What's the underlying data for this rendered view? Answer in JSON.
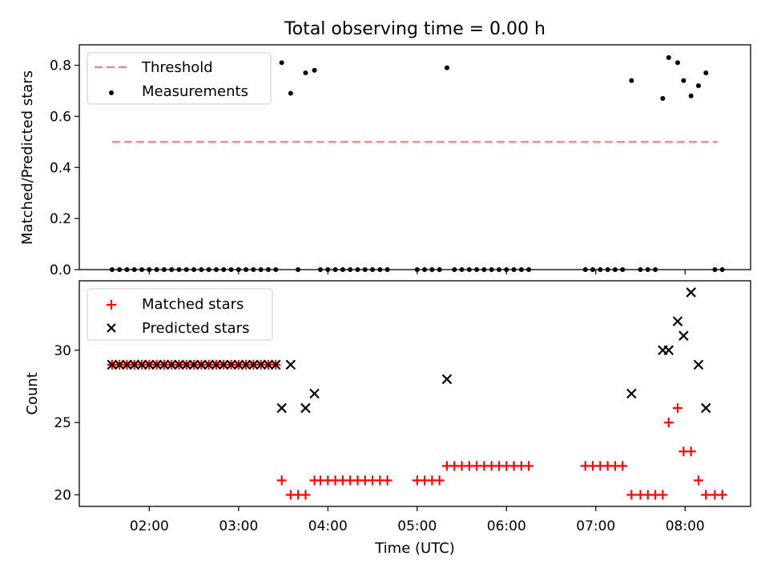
{
  "figure_title": "Total observing time = 0.00 h",
  "xlabel": "Time (UTC)",
  "xticks": [
    "02:00",
    "03:00",
    "04:00",
    "05:00",
    "06:00",
    "07:00",
    "08:00"
  ],
  "chart_data": [
    {
      "type": "scatter",
      "ylabel": "Matched/Predicted stars",
      "xlim": [
        "01:13",
        "08:44"
      ],
      "ylim": [
        0,
        0.88
      ],
      "yticks": [
        "0.0",
        "0.2",
        "0.4",
        "0.6",
        "0.8"
      ],
      "legend_position": "upper-left",
      "threshold": {
        "name": "Threshold",
        "value": 0.5,
        "x_start": "01:35",
        "x_end": "08:22",
        "color": "#ff7b7b",
        "style": "dashed"
      },
      "series": [
        {
          "name": "Measurements",
          "marker": "dot",
          "color": "#000000",
          "points": [
            [
              "01:35",
              0
            ],
            [
              "01:40",
              0
            ],
            [
              "01:45",
              0
            ],
            [
              "01:50",
              0
            ],
            [
              "01:55",
              0
            ],
            [
              "02:00",
              0
            ],
            [
              "02:05",
              0
            ],
            [
              "02:10",
              0
            ],
            [
              "02:15",
              0
            ],
            [
              "02:20",
              0
            ],
            [
              "02:25",
              0
            ],
            [
              "02:30",
              0
            ],
            [
              "02:35",
              0
            ],
            [
              "02:40",
              0
            ],
            [
              "02:45",
              0
            ],
            [
              "02:50",
              0
            ],
            [
              "02:55",
              0
            ],
            [
              "03:00",
              0
            ],
            [
              "03:05",
              0
            ],
            [
              "03:10",
              0
            ],
            [
              "03:15",
              0
            ],
            [
              "03:20",
              0
            ],
            [
              "03:25",
              0
            ],
            [
              "03:29",
              0.81
            ],
            [
              "03:35",
              0.69
            ],
            [
              "03:40",
              0
            ],
            [
              "03:45",
              0.77
            ],
            [
              "03:51",
              0.78
            ],
            [
              "03:55",
              0
            ],
            [
              "04:00",
              0
            ],
            [
              "04:05",
              0
            ],
            [
              "04:10",
              0
            ],
            [
              "04:15",
              0
            ],
            [
              "04:20",
              0
            ],
            [
              "04:25",
              0
            ],
            [
              "04:30",
              0
            ],
            [
              "04:35",
              0
            ],
            [
              "04:40",
              0
            ],
            [
              "05:00",
              0
            ],
            [
              "05:05",
              0
            ],
            [
              "05:10",
              0
            ],
            [
              "05:15",
              0
            ],
            [
              "05:20",
              0.79
            ],
            [
              "05:25",
              0
            ],
            [
              "05:30",
              0
            ],
            [
              "05:35",
              0
            ],
            [
              "05:40",
              0
            ],
            [
              "05:45",
              0
            ],
            [
              "05:50",
              0
            ],
            [
              "05:55",
              0
            ],
            [
              "06:00",
              0
            ],
            [
              "06:05",
              0
            ],
            [
              "06:10",
              0
            ],
            [
              "06:15",
              0
            ],
            [
              "06:53",
              0
            ],
            [
              "06:58",
              0
            ],
            [
              "07:03",
              0
            ],
            [
              "07:08",
              0
            ],
            [
              "07:13",
              0
            ],
            [
              "07:18",
              0
            ],
            [
              "07:24",
              0.74
            ],
            [
              "07:30",
              0
            ],
            [
              "07:35",
              0
            ],
            [
              "07:40",
              0
            ],
            [
              "07:45",
              0.67
            ],
            [
              "07:49",
              0.83
            ],
            [
              "07:55",
              0.81
            ],
            [
              "07:59",
              0.74
            ],
            [
              "08:04",
              0.68
            ],
            [
              "08:09",
              0.72
            ],
            [
              "08:14",
              0.77
            ],
            [
              "08:20",
              0
            ],
            [
              "08:25",
              0
            ]
          ]
        }
      ]
    },
    {
      "type": "scatter",
      "ylabel": "Count",
      "xlabel": "Time (UTC)",
      "xlim": [
        "01:13",
        "08:44"
      ],
      "ylim": [
        19.2,
        34.8
      ],
      "yticks": [
        "20",
        "25",
        "30"
      ],
      "legend_position": "upper-left",
      "series": [
        {
          "name": "Matched stars",
          "marker": "plus",
          "color": "#ff0000",
          "points": [
            [
              "01:35",
              29
            ],
            [
              "01:40",
              29
            ],
            [
              "01:45",
              29
            ],
            [
              "01:50",
              29
            ],
            [
              "01:55",
              29
            ],
            [
              "02:00",
              29
            ],
            [
              "02:05",
              29
            ],
            [
              "02:10",
              29
            ],
            [
              "02:15",
              29
            ],
            [
              "02:20",
              29
            ],
            [
              "02:25",
              29
            ],
            [
              "02:30",
              29
            ],
            [
              "02:35",
              29
            ],
            [
              "02:40",
              29
            ],
            [
              "02:45",
              29
            ],
            [
              "02:50",
              29
            ],
            [
              "02:55",
              29
            ],
            [
              "03:00",
              29
            ],
            [
              "03:05",
              29
            ],
            [
              "03:10",
              29
            ],
            [
              "03:15",
              29
            ],
            [
              "03:20",
              29
            ],
            [
              "03:25",
              29
            ],
            [
              "03:29",
              21
            ],
            [
              "03:35",
              20
            ],
            [
              "03:40",
              20
            ],
            [
              "03:45",
              20
            ],
            [
              "03:51",
              21
            ],
            [
              "03:55",
              21
            ],
            [
              "04:00",
              21
            ],
            [
              "04:05",
              21
            ],
            [
              "04:10",
              21
            ],
            [
              "04:15",
              21
            ],
            [
              "04:20",
              21
            ],
            [
              "04:25",
              21
            ],
            [
              "04:30",
              21
            ],
            [
              "04:35",
              21
            ],
            [
              "04:40",
              21
            ],
            [
              "05:00",
              21
            ],
            [
              "05:05",
              21
            ],
            [
              "05:10",
              21
            ],
            [
              "05:15",
              21
            ],
            [
              "05:20",
              22
            ],
            [
              "05:25",
              22
            ],
            [
              "05:30",
              22
            ],
            [
              "05:35",
              22
            ],
            [
              "05:40",
              22
            ],
            [
              "05:45",
              22
            ],
            [
              "05:50",
              22
            ],
            [
              "05:55",
              22
            ],
            [
              "06:00",
              22
            ],
            [
              "06:05",
              22
            ],
            [
              "06:10",
              22
            ],
            [
              "06:15",
              22
            ],
            [
              "06:53",
              22
            ],
            [
              "06:58",
              22
            ],
            [
              "07:03",
              22
            ],
            [
              "07:08",
              22
            ],
            [
              "07:13",
              22
            ],
            [
              "07:18",
              22
            ],
            [
              "07:24",
              20
            ],
            [
              "07:30",
              20
            ],
            [
              "07:35",
              20
            ],
            [
              "07:40",
              20
            ],
            [
              "07:45",
              20
            ],
            [
              "07:49",
              25
            ],
            [
              "07:55",
              26
            ],
            [
              "07:59",
              23
            ],
            [
              "08:04",
              23
            ],
            [
              "08:09",
              21
            ],
            [
              "08:14",
              20
            ],
            [
              "08:20",
              20
            ],
            [
              "08:25",
              20
            ]
          ]
        },
        {
          "name": "Predicted stars",
          "marker": "x",
          "color": "#000000",
          "points": [
            [
              "01:35",
              29
            ],
            [
              "01:40",
              29
            ],
            [
              "01:45",
              29
            ],
            [
              "01:50",
              29
            ],
            [
              "01:55",
              29
            ],
            [
              "02:00",
              29
            ],
            [
              "02:05",
              29
            ],
            [
              "02:10",
              29
            ],
            [
              "02:15",
              29
            ],
            [
              "02:20",
              29
            ],
            [
              "02:25",
              29
            ],
            [
              "02:30",
              29
            ],
            [
              "02:35",
              29
            ],
            [
              "02:40",
              29
            ],
            [
              "02:45",
              29
            ],
            [
              "02:50",
              29
            ],
            [
              "02:55",
              29
            ],
            [
              "03:00",
              29
            ],
            [
              "03:05",
              29
            ],
            [
              "03:10",
              29
            ],
            [
              "03:15",
              29
            ],
            [
              "03:20",
              29
            ],
            [
              "03:25",
              29
            ],
            [
              "03:29",
              26
            ],
            [
              "03:35",
              29
            ],
            [
              "03:45",
              26
            ],
            [
              "03:51",
              27
            ],
            [
              "05:20",
              28
            ],
            [
              "07:24",
              27
            ],
            [
              "07:45",
              30
            ],
            [
              "07:49",
              30
            ],
            [
              "07:55",
              32
            ],
            [
              "07:59",
              31
            ],
            [
              "08:04",
              34
            ],
            [
              "08:09",
              29
            ],
            [
              "08:14",
              26
            ]
          ]
        }
      ]
    }
  ]
}
